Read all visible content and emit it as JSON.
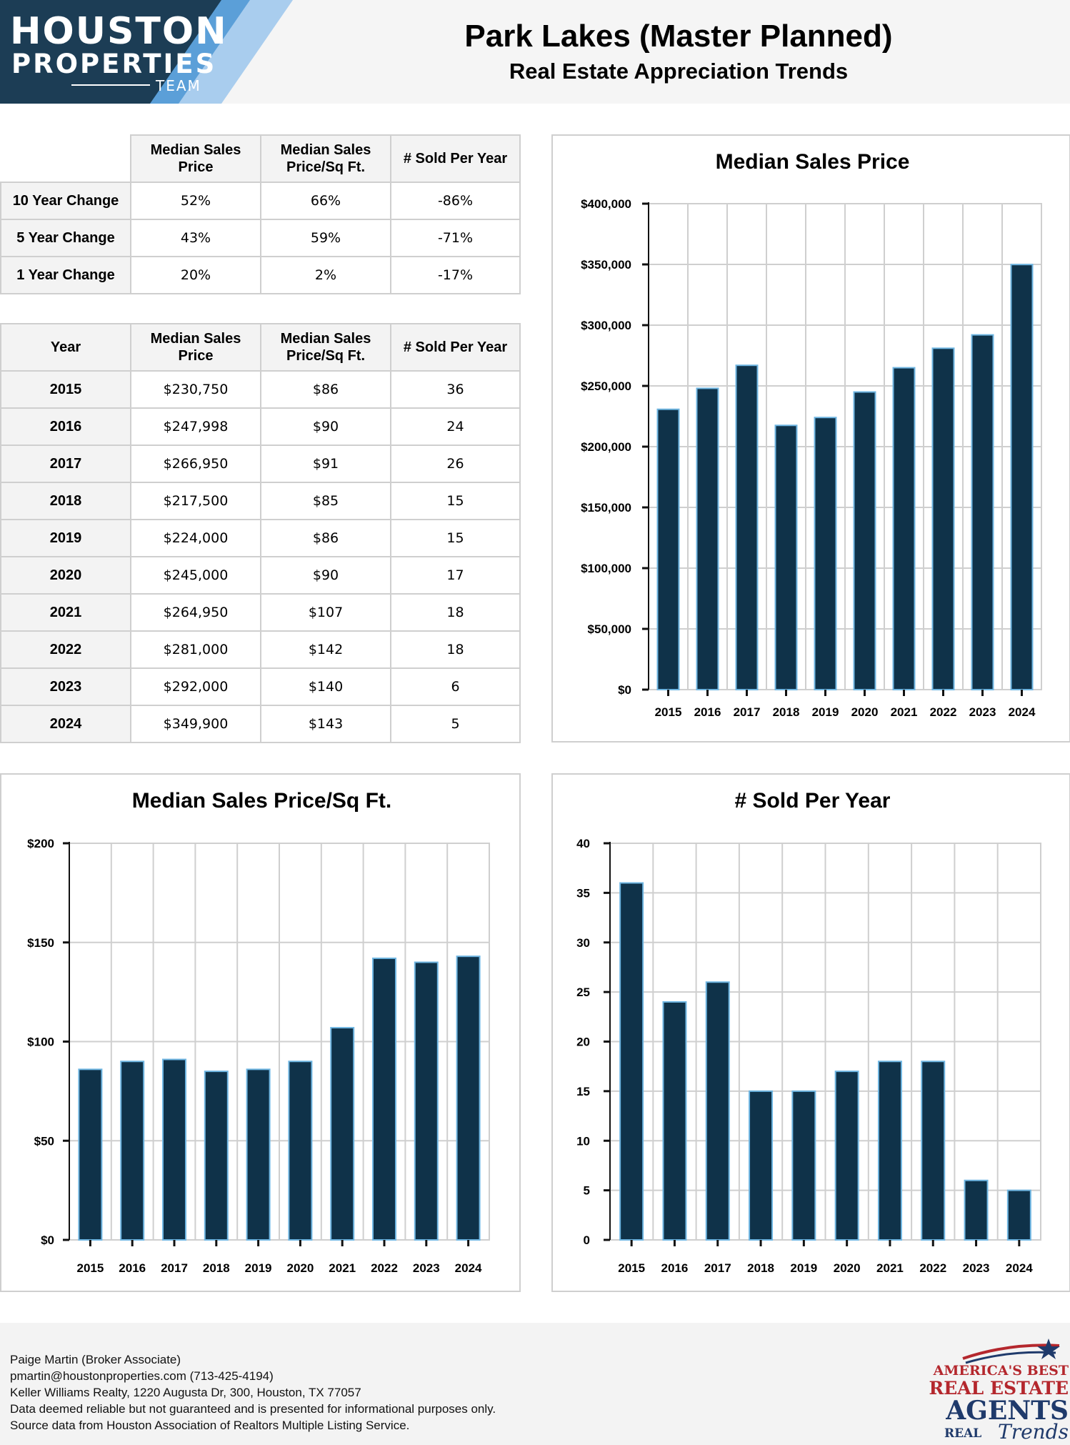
{
  "brand": {
    "line1": "HOUSTON",
    "line2": "PROPERTIES",
    "line3": "TEAM",
    "dark_color": "#1c3d55",
    "accent_color": "#5b9fd8",
    "light_accent_color": "#a9cdee"
  },
  "header": {
    "title": "Park Lakes (Master Planned)",
    "subtitle": "Real Estate Appreciation Trends"
  },
  "columns": [
    "Median Sales Price",
    "Median Sales Price/Sq Ft.",
    "# Sold Per Year"
  ],
  "change_table": {
    "rows": [
      {
        "label": "10 Year Change",
        "values": [
          "52%",
          "66%",
          "-86%"
        ]
      },
      {
        "label": "5 Year Change",
        "values": [
          "43%",
          "59%",
          "-71%"
        ]
      },
      {
        "label": "1 Year Change",
        "values": [
          "20%",
          "2%",
          "-17%"
        ]
      }
    ]
  },
  "year_table": {
    "header_label": "Year",
    "rows": [
      {
        "year": "2015",
        "values": [
          "$230,750",
          "$86",
          "36"
        ]
      },
      {
        "year": "2016",
        "values": [
          "$247,998",
          "$90",
          "24"
        ]
      },
      {
        "year": "2017",
        "values": [
          "$266,950",
          "$91",
          "26"
        ]
      },
      {
        "year": "2018",
        "values": [
          "$217,500",
          "$85",
          "15"
        ]
      },
      {
        "year": "2019",
        "values": [
          "$224,000",
          "$86",
          "15"
        ]
      },
      {
        "year": "2020",
        "values": [
          "$245,000",
          "$90",
          "17"
        ]
      },
      {
        "year": "2021",
        "values": [
          "$264,950",
          "$107",
          "18"
        ]
      },
      {
        "year": "2022",
        "values": [
          "$281,000",
          "$142",
          "18"
        ]
      },
      {
        "year": "2023",
        "values": [
          "$292,000",
          "$140",
          "6"
        ]
      },
      {
        "year": "2024",
        "values": [
          "$349,900",
          "$143",
          "5"
        ]
      }
    ]
  },
  "chart_data": [
    {
      "id": "price",
      "type": "bar",
      "title": "Median Sales Price",
      "categories": [
        "2015",
        "2016",
        "2017",
        "2018",
        "2019",
        "2020",
        "2021",
        "2022",
        "2023",
        "2024"
      ],
      "values": [
        230750,
        247998,
        266950,
        217500,
        224000,
        245000,
        264950,
        281000,
        292000,
        349900
      ],
      "ylim": [
        0,
        400000
      ],
      "yticks": [
        0,
        50000,
        100000,
        150000,
        200000,
        250000,
        300000,
        350000,
        400000
      ],
      "ytick_labels": [
        "$0",
        "$50,000",
        "$100,000",
        "$150,000",
        "$200,000",
        "$250,000",
        "$300,000",
        "$350,000",
        "$400,000"
      ],
      "grid": true,
      "bar_color": "#0f3249",
      "bar_edge_color": "#6fb6e2"
    },
    {
      "id": "sqft",
      "type": "bar",
      "title": "Median Sales Price/Sq Ft.",
      "categories": [
        "2015",
        "2016",
        "2017",
        "2018",
        "2019",
        "2020",
        "2021",
        "2022",
        "2023",
        "2024"
      ],
      "values": [
        86,
        90,
        91,
        85,
        86,
        90,
        107,
        142,
        140,
        143
      ],
      "ylim": [
        0,
        200
      ],
      "yticks": [
        0,
        50,
        100,
        150,
        200
      ],
      "ytick_labels": [
        "$0",
        "$50",
        "$100",
        "$150",
        "$200"
      ],
      "grid": true,
      "bar_color": "#0f3249",
      "bar_edge_color": "#6fb6e2"
    },
    {
      "id": "sold",
      "type": "bar",
      "title": "# Sold Per Year",
      "categories": [
        "2015",
        "2016",
        "2017",
        "2018",
        "2019",
        "2020",
        "2021",
        "2022",
        "2023",
        "2024"
      ],
      "values": [
        36,
        24,
        26,
        15,
        15,
        17,
        18,
        18,
        6,
        5
      ],
      "ylim": [
        0,
        40
      ],
      "yticks": [
        0,
        5,
        10,
        15,
        20,
        25,
        30,
        35,
        40
      ],
      "ytick_labels": [
        "0",
        "5",
        "10",
        "15",
        "20",
        "25",
        "30",
        "35",
        "40"
      ],
      "grid": true,
      "bar_color": "#0f3249",
      "bar_edge_color": "#6fb6e2"
    }
  ],
  "footer": {
    "lines": [
      "Paige Martin (Broker Associate)",
      "pmartin@houstonproperties.com (713-425-4194)",
      "Keller Williams Realty, 1220 Augusta Dr, 300, Houston, TX 77057",
      "Data deemed reliable but not guaranteed and is presented for informational purposes only.",
      "Source data from Houston Association of Realtors Multiple Listing Service."
    ]
  },
  "badge": {
    "line1": "AMERICA'S BEST",
    "line2": "REAL ESTATE",
    "line3": "AGENTS",
    "line4": "REAL",
    "line5": "Trends",
    "red_color": "#b4272d",
    "navy_color": "#1f3a6b"
  }
}
